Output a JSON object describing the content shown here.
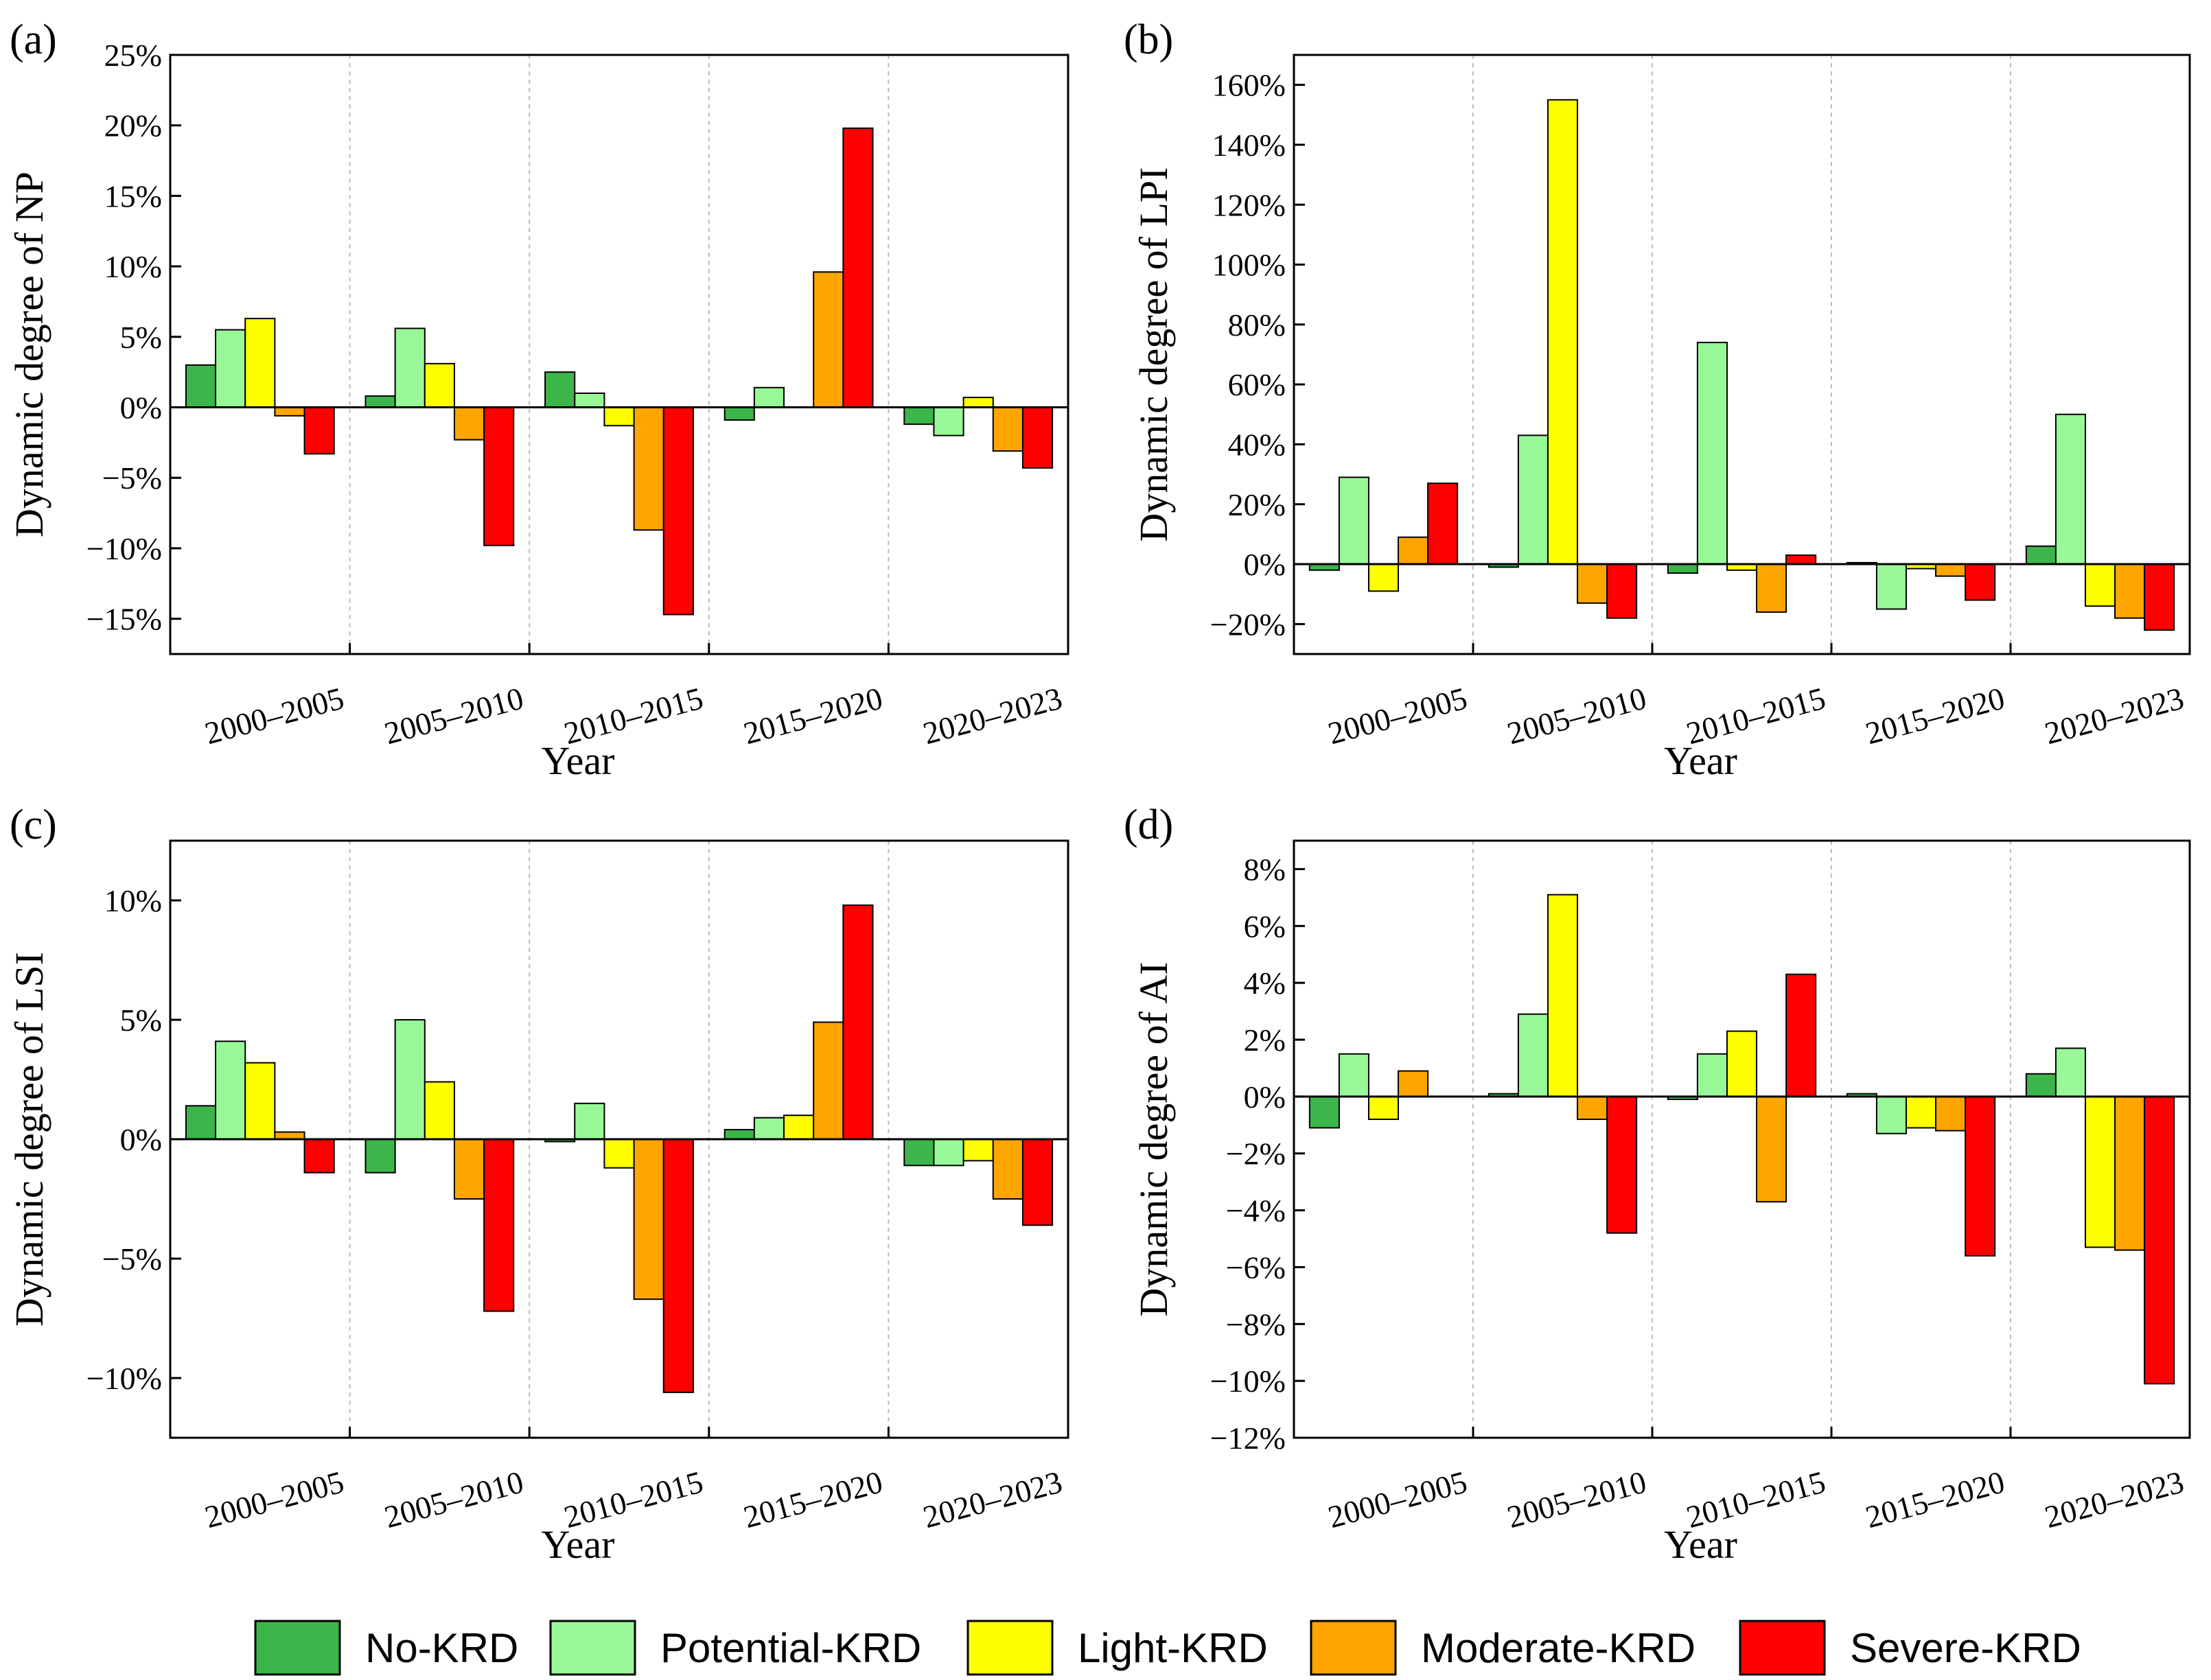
{
  "legend": {
    "items": [
      {
        "label": "No-KRD",
        "color": "#3cb54a"
      },
      {
        "label": "Potential-KRD",
        "color": "#98f898"
      },
      {
        "label": "Light-KRD",
        "color": "#ffff00"
      },
      {
        "label": "Moderate-KRD",
        "color": "#ffa500"
      },
      {
        "label": "Severe-KRD",
        "color": "#ff0000"
      }
    ]
  },
  "chart_data": [
    {
      "panel": "(a)",
      "type": "bar",
      "ylabel": "Dynamic degree of NP",
      "xlabel": "Year",
      "categories": [
        "2000–2005",
        "2005–2010",
        "2010–2015",
        "2015–2020",
        "2020–2023"
      ],
      "ylim": [
        -17.5,
        25
      ],
      "yticks": [
        -15,
        -10,
        -5,
        0,
        5,
        10,
        15,
        20,
        25
      ],
      "ytick_labels": [
        "−15%",
        "−10%",
        "−5%",
        "0%",
        "5%",
        "10%",
        "15%",
        "20%",
        "25%"
      ],
      "series": [
        {
          "name": "No-KRD",
          "values": [
            3.0,
            0.8,
            2.5,
            -0.9,
            -1.2
          ]
        },
        {
          "name": "Potential-KRD",
          "values": [
            5.5,
            5.6,
            1.0,
            1.4,
            -2.0
          ]
        },
        {
          "name": "Light-KRD",
          "values": [
            6.3,
            3.1,
            -1.3,
            0,
            0.7
          ]
        },
        {
          "name": "Moderate-KRD",
          "values": [
            -0.6,
            -2.3,
            -8.7,
            9.6,
            -3.1
          ]
        },
        {
          "name": "Severe-KRD",
          "values": [
            -3.3,
            -9.8,
            -14.7,
            19.8,
            -4.3
          ]
        }
      ]
    },
    {
      "panel": "(b)",
      "type": "bar",
      "ylabel": "Dynamic degree of LPI",
      "xlabel": "Year",
      "categories": [
        "2000–2005",
        "2005–2010",
        "2010–2015",
        "2015–2020",
        "2020–2023"
      ],
      "ylim": [
        -30,
        170
      ],
      "yticks": [
        -20,
        0,
        20,
        40,
        60,
        80,
        100,
        120,
        140,
        160
      ],
      "ytick_labels": [
        "−20%",
        "0%",
        "20%",
        "40%",
        "60%",
        "80%",
        "100%",
        "120%",
        "140%",
        "160%"
      ],
      "series": [
        {
          "name": "No-KRD",
          "values": [
            -2.0,
            -1.0,
            -3.0,
            0.5,
            6.0
          ]
        },
        {
          "name": "Potential-KRD",
          "values": [
            29,
            43,
            74,
            -15,
            50
          ]
        },
        {
          "name": "Light-KRD",
          "values": [
            -9,
            155,
            -2.0,
            -1.5,
            -14
          ]
        },
        {
          "name": "Moderate-KRD",
          "values": [
            9,
            -13,
            -16,
            -4,
            -18
          ]
        },
        {
          "name": "Severe-KRD",
          "values": [
            27,
            -18,
            3,
            -12,
            -22
          ]
        }
      ]
    },
    {
      "panel": "(c)",
      "type": "bar",
      "ylabel": "Dynamic degree of LSI",
      "xlabel": "Year",
      "categories": [
        "2000–2005",
        "2005–2010",
        "2010–2015",
        "2015–2020",
        "2020–2023"
      ],
      "ylim": [
        -12.5,
        12.5
      ],
      "yticks": [
        -10,
        -5,
        0,
        5,
        10
      ],
      "ytick_labels": [
        "−10%",
        "−5%",
        "0%",
        "5%",
        "10%"
      ],
      "series": [
        {
          "name": "No-KRD",
          "values": [
            1.4,
            -1.4,
            -0.1,
            0.4,
            -1.1
          ]
        },
        {
          "name": "Potential-KRD",
          "values": [
            4.1,
            5.0,
            1.5,
            0.9,
            -1.1
          ]
        },
        {
          "name": "Light-KRD",
          "values": [
            3.2,
            2.4,
            -1.2,
            1.0,
            -0.9
          ]
        },
        {
          "name": "Moderate-KRD",
          "values": [
            0.3,
            -2.5,
            -6.7,
            4.9,
            -2.5
          ]
        },
        {
          "name": "Severe-KRD",
          "values": [
            -1.4,
            -7.2,
            -10.6,
            9.8,
            -3.6
          ]
        }
      ]
    },
    {
      "panel": "(d)",
      "type": "bar",
      "ylabel": "Dynamic degree of AI",
      "xlabel": "Year",
      "categories": [
        "2000–2005",
        "2005–2010",
        "2010–2015",
        "2015–2020",
        "2020–2023"
      ],
      "ylim": [
        -12,
        9
      ],
      "yticks": [
        -12,
        -10,
        -8,
        -6,
        -4,
        -2,
        0,
        2,
        4,
        6,
        8
      ],
      "ytick_labels": [
        "−12%",
        "−10%",
        "−8%",
        "−6%",
        "−4%",
        "−2%",
        "0%",
        "2%",
        "4%",
        "6%",
        "8%"
      ],
      "series": [
        {
          "name": "No-KRD",
          "values": [
            -1.1,
            0.1,
            -0.1,
            0.1,
            0.8
          ]
        },
        {
          "name": "Potential-KRD",
          "values": [
            1.5,
            2.9,
            1.5,
            -1.3,
            1.7
          ]
        },
        {
          "name": "Light-KRD",
          "values": [
            -0.8,
            7.1,
            2.3,
            -1.1,
            -5.3
          ]
        },
        {
          "name": "Moderate-KRD",
          "values": [
            0.9,
            -0.8,
            -3.7,
            -1.2,
            -5.4
          ]
        },
        {
          "name": "Severe-KRD",
          "values": [
            0,
            -4.8,
            4.3,
            -5.6,
            -10.1
          ]
        }
      ]
    }
  ]
}
